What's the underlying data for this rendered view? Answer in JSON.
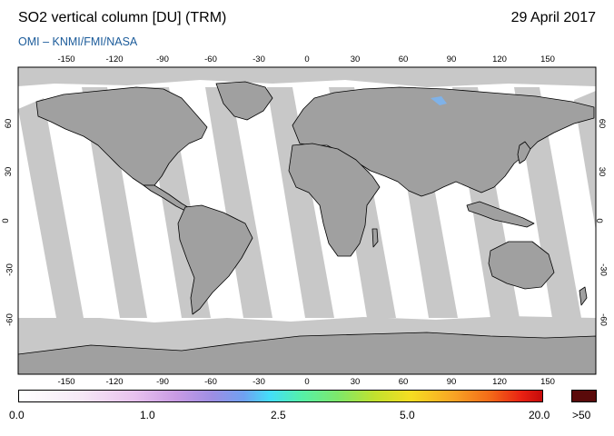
{
  "header": {
    "title": "SO2 vertical column [DU] (TRM)",
    "date": "29 April 2017",
    "source": "OMI  –  KNMI/FMI/NASA"
  },
  "map": {
    "projection": "equirectangular",
    "land_color": "#a0a0a0",
    "swath_color": "#c8c8c8",
    "no_data_color": "#c8c8c8",
    "background_color": "#ffffff",
    "coastline_color": "#000000",
    "longitude_ticks": [
      "-150",
      "-120",
      "-90",
      "-60",
      "-30",
      "0",
      "30",
      "60",
      "90",
      "120",
      "150"
    ],
    "latitude_ticks": [
      "60",
      "30",
      "0",
      "-30",
      "-60"
    ]
  },
  "colorbar": {
    "labels": [
      "0.0",
      "1.0",
      "2.5",
      "5.0",
      "20.0"
    ],
    "over_label": ">50",
    "over_color": "#5a0a0a",
    "colors": [
      "#ffffff",
      "#e8c2ee",
      "#9d8ee4",
      "#43dff8",
      "#7ee86a",
      "#f6dd22",
      "#f36a18",
      "#c50a0a"
    ]
  }
}
